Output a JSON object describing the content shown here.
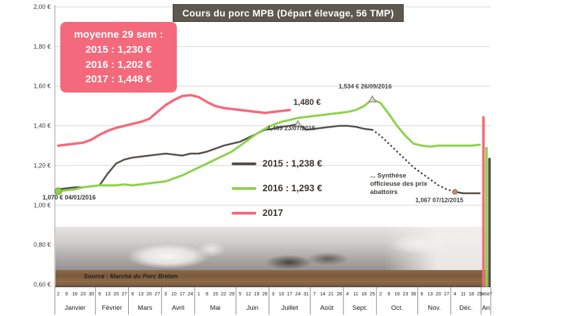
{
  "title": "Cours du porc MPB (Départ élevage, 56 TMP)",
  "moyenne_box": {
    "heading": "moyenne 29 sem :",
    "line_2015": "2015 : 1,230 €",
    "line_2016": "2016 :  1,202 €",
    "line_2017": "2017 :  1,448 €",
    "background": "#f4697b"
  },
  "legend": {
    "items": [
      {
        "name": "2015",
        "label": "2015 : 1,238 €",
        "color": "#56504a"
      },
      {
        "name": "2016",
        "label": "2016 : 1,293 €",
        "color": "#8ed24c"
      },
      {
        "name": "2017",
        "label": "2017",
        "color": "#f4697b"
      }
    ]
  },
  "annotations": {
    "latest_2017": "1,480 €",
    "peak_2016": "1,534 € 26/09/2016",
    "peak_2015": "1,409 23/07/2015",
    "start_2016": "1,070 € 04/01/2016",
    "end_2015": "1,067 07/12/2015",
    "synthese": "... Synthèse officieuse des prix abattoirs",
    "source": "Source : Marché du Porc Breton"
  },
  "chart_data": {
    "type": "line",
    "title": "Cours du porc MPB (Départ élevage, 56 TMP)",
    "ymin": 0.6,
    "ymax": 2.0,
    "ystep": 0.2,
    "y_tick_labels": [
      "2,00 €",
      "1,80 €",
      "1,60 €",
      "1,40 €",
      "1,20 €",
      "1,00 €",
      "0,80 €",
      "0,60 €"
    ],
    "an_label": "An",
    "an_ticks": "28567",
    "grid": true,
    "months": [
      {
        "label": "Janvier",
        "ticks": [
          "2",
          "9",
          "16",
          "23",
          "30"
        ]
      },
      {
        "label": "Février",
        "ticks": [
          "6",
          "13",
          "20",
          "27"
        ]
      },
      {
        "label": "Mars",
        "ticks": [
          "6",
          "13",
          "20",
          "27"
        ]
      },
      {
        "label": "Avril",
        "ticks": [
          "3",
          "10",
          "17",
          "24"
        ]
      },
      {
        "label": "Mai",
        "ticks": [
          "1",
          "8",
          "15",
          "22",
          "29"
        ]
      },
      {
        "label": "Juin",
        "ticks": [
          "5",
          "12",
          "19",
          "26"
        ]
      },
      {
        "label": "Juillet",
        "ticks": [
          "3",
          "10",
          "17",
          "24",
          "31"
        ]
      },
      {
        "label": "Août",
        "ticks": [
          "7",
          "14",
          "21",
          "28"
        ]
      },
      {
        "label": "Sept.",
        "ticks": [
          "4",
          "11",
          "18",
          "25"
        ]
      },
      {
        "label": "Oct.",
        "ticks": [
          "2",
          "9",
          "16",
          "23",
          "30"
        ]
      },
      {
        "label": "Nov.",
        "ticks": [
          "6",
          "13",
          "20",
          "27"
        ]
      },
      {
        "label": "Déc.",
        "ticks": [
          "4",
          "11",
          "18",
          "25"
        ]
      }
    ],
    "series": [
      {
        "name": "2015",
        "color": "#56504a",
        "width": 2.6,
        "dash_from": 39,
        "dash_to": 49,
        "values": [
          1.08,
          1.085,
          1.09,
          1.09,
          1.095,
          1.1,
          1.16,
          1.21,
          1.23,
          1.24,
          1.245,
          1.25,
          1.255,
          1.26,
          1.255,
          1.25,
          1.26,
          1.26,
          1.27,
          1.285,
          1.3,
          1.31,
          1.32,
          1.34,
          1.36,
          1.38,
          1.385,
          1.395,
          1.4,
          1.409,
          1.38,
          1.385,
          1.39,
          1.395,
          1.4,
          1.4,
          1.395,
          1.385,
          1.38,
          1.35,
          1.31,
          1.27,
          1.23,
          1.19,
          1.16,
          1.13,
          1.1,
          1.08,
          1.067,
          1.06,
          1.06,
          1.06
        ]
      },
      {
        "name": "2016",
        "color": "#8ed24c",
        "width": 3.2,
        "values": [
          1.07,
          1.075,
          1.08,
          1.09,
          1.095,
          1.1,
          1.1,
          1.1,
          1.105,
          1.1,
          1.105,
          1.11,
          1.115,
          1.12,
          1.135,
          1.15,
          1.17,
          1.19,
          1.21,
          1.23,
          1.25,
          1.27,
          1.3,
          1.33,
          1.36,
          1.385,
          1.405,
          1.42,
          1.43,
          1.44,
          1.445,
          1.45,
          1.455,
          1.46,
          1.465,
          1.47,
          1.48,
          1.5,
          1.534,
          1.515,
          1.46,
          1.4,
          1.35,
          1.31,
          1.3,
          1.295,
          1.3,
          1.3,
          1.3,
          1.3,
          1.3,
          1.305
        ]
      },
      {
        "name": "2017",
        "color": "#f4697b",
        "width": 3.6,
        "values": [
          1.3,
          1.305,
          1.31,
          1.315,
          1.33,
          1.355,
          1.375,
          1.39,
          1.4,
          1.41,
          1.42,
          1.435,
          1.47,
          1.505,
          1.53,
          1.55,
          1.555,
          1.545,
          1.52,
          1.5,
          1.49,
          1.485,
          1.48,
          1.475,
          1.47,
          1.465,
          1.47,
          1.475,
          1.48
        ]
      }
    ],
    "markers": [
      {
        "series": "2016",
        "week": 1,
        "value": 1.07,
        "shape": "circle",
        "fill": "#8ed24c",
        "stroke": "#5f9a2e",
        "r": 5
      },
      {
        "series": "2015",
        "week": 30,
        "value": 1.409,
        "shape": "triangle",
        "fill": "#d8d4cf",
        "stroke": "#7f7a74"
      },
      {
        "series": "2016",
        "week": 39,
        "value": 1.534,
        "shape": "triangle",
        "fill": "#d8d4cf",
        "stroke": "#7f7a74"
      },
      {
        "series": "2015",
        "week": 49,
        "value": 1.067,
        "shape": "circle",
        "fill": "#b98f68",
        "stroke": "#8f6b49",
        "r": 3.5
      }
    ],
    "annual_bars": [
      {
        "name": "2017",
        "value": 1.448,
        "color": "#f4697b"
      },
      {
        "name": "2016",
        "value": 1.293,
        "color": "#8ed24c"
      },
      {
        "name": "2015",
        "value": 1.238,
        "color": "#56504a"
      }
    ]
  }
}
